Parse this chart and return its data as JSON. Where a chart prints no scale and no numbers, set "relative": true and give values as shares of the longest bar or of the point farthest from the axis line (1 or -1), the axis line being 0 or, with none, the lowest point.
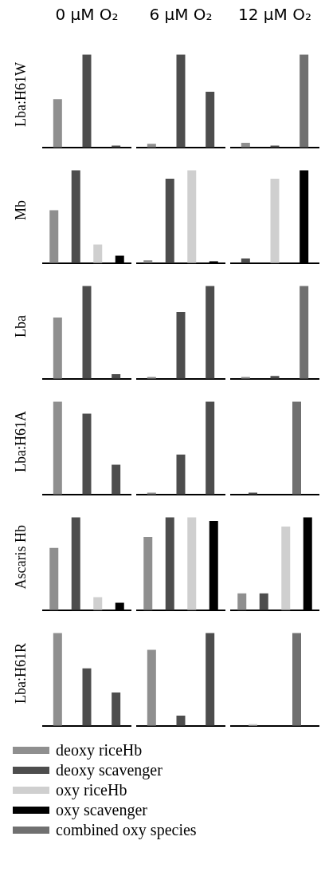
{
  "chart_data": [
    {
      "type": "bar",
      "title": "0 μM O₂",
      "ylabel": "Lba:H61W",
      "relative": true,
      "categories": [
        null,
        null,
        null
      ],
      "values": [
        0.52,
        1,
        0.02
      ],
      "colors": [
        "#8f8f8f",
        "#4d4d4d",
        "#4d4d4d"
      ]
    },
    {
      "type": "bar",
      "title": "6 μM O₂",
      "relative": true,
      "categories": [
        null,
        null,
        null
      ],
      "values": [
        0.04,
        1,
        0.6
      ],
      "colors": [
        "#8f8f8f",
        "#4d4d4d",
        "#4d4d4d"
      ]
    },
    {
      "type": "bar",
      "title": "12 μM O₂",
      "relative": true,
      "categories": [
        null,
        null,
        null
      ],
      "values": [
        0.05,
        0.02,
        1
      ],
      "colors": [
        "#8f8f8f",
        "#4d4d4d",
        "#707070"
      ]
    },
    {
      "type": "bar",
      "ylabel": "Mb",
      "relative": true,
      "categories": [
        null,
        null,
        null,
        null
      ],
      "values": [
        0.57,
        1,
        0.2,
        0.08
      ],
      "colors": [
        "#8f8f8f",
        "#4d4d4d",
        "#cfcfcf",
        "#000000"
      ]
    },
    {
      "type": "bar",
      "relative": true,
      "categories": [
        null,
        null,
        null,
        null
      ],
      "values": [
        0.03,
        0.91,
        1,
        0.02
      ],
      "colors": [
        "#8f8f8f",
        "#4d4d4d",
        "#cfcfcf",
        "#000000"
      ]
    },
    {
      "type": "bar",
      "relative": true,
      "categories": [
        null,
        null,
        null
      ],
      "values": [
        0.05,
        0.91,
        1
      ],
      "colors": [
        "#4d4d4d",
        "#cfcfcf",
        "#000000"
      ]
    },
    {
      "type": "bar",
      "ylabel": "Lba",
      "relative": true,
      "categories": [
        null,
        null,
        null
      ],
      "values": [
        0.66,
        1,
        0.05
      ],
      "colors": [
        "#8f8f8f",
        "#4d4d4d",
        "#4d4d4d"
      ]
    },
    {
      "type": "bar",
      "relative": true,
      "categories": [
        null,
        null,
        null
      ],
      "values": [
        0.02,
        0.72,
        1
      ],
      "colors": [
        "#8f8f8f",
        "#4d4d4d",
        "#4d4d4d"
      ]
    },
    {
      "type": "bar",
      "relative": true,
      "categories": [
        null,
        null,
        null
      ],
      "values": [
        0.02,
        0.03,
        1
      ],
      "colors": [
        "#8f8f8f",
        "#4d4d4d",
        "#707070"
      ]
    },
    {
      "type": "bar",
      "ylabel": "Lba:H61A",
      "relative": true,
      "categories": [
        null,
        null,
        null
      ],
      "values": [
        1,
        0.87,
        0.32
      ],
      "colors": [
        "#8f8f8f",
        "#4d4d4d",
        "#4d4d4d"
      ]
    },
    {
      "type": "bar",
      "relative": true,
      "categories": [
        null,
        null,
        null
      ],
      "values": [
        0.02,
        0.43,
        1
      ],
      "colors": [
        "#8f8f8f",
        "#4d4d4d",
        "#4d4d4d"
      ]
    },
    {
      "type": "bar",
      "relative": true,
      "categories": [
        null,
        null
      ],
      "values": [
        0.02,
        1
      ],
      "colors": [
        "#4d4d4d",
        "#707070"
      ]
    },
    {
      "type": "bar",
      "ylabel": "Ascaris Hb",
      "relative": true,
      "categories": [
        null,
        null,
        null,
        null
      ],
      "values": [
        0.67,
        1,
        0.14,
        0.08
      ],
      "colors": [
        "#8f8f8f",
        "#4d4d4d",
        "#cfcfcf",
        "#000000"
      ]
    },
    {
      "type": "bar",
      "relative": true,
      "categories": [
        null,
        null,
        null,
        null
      ],
      "values": [
        0.79,
        1,
        1,
        0.96
      ],
      "colors": [
        "#8f8f8f",
        "#4d4d4d",
        "#cfcfcf",
        "#000000"
      ]
    },
    {
      "type": "bar",
      "relative": true,
      "categories": [
        null,
        null,
        null,
        null
      ],
      "values": [
        0.18,
        0.18,
        0.9,
        1
      ],
      "colors": [
        "#8f8f8f",
        "#4d4d4d",
        "#cfcfcf",
        "#000000"
      ]
    },
    {
      "type": "bar",
      "ylabel": "Lba:H61R",
      "relative": true,
      "categories": [
        null,
        null,
        null
      ],
      "values": [
        1,
        0.62,
        0.36
      ],
      "colors": [
        "#8f8f8f",
        "#4d4d4d",
        "#4d4d4d"
      ]
    },
    {
      "type": "bar",
      "relative": true,
      "categories": [
        null,
        null,
        null
      ],
      "values": [
        0.82,
        0.11,
        1
      ],
      "colors": [
        "#8f8f8f",
        "#4d4d4d",
        "#4d4d4d"
      ]
    },
    {
      "type": "bar",
      "relative": true,
      "categories": [
        null,
        null
      ],
      "values": [
        0.02,
        1
      ],
      "colors": [
        "#cfcfcf",
        "#707070"
      ]
    },
    {
      "type": "other",
      "annotations": [
        "deoxy riceHb",
        "deoxy scavenger",
        "oxy riceHb",
        "oxy scavenger",
        "combined oxy species"
      ],
      "colors": [
        "#8f8f8f",
        "#4d4d4d",
        "#cfcfcf",
        "#000000",
        "#707070"
      ]
    }
  ]
}
